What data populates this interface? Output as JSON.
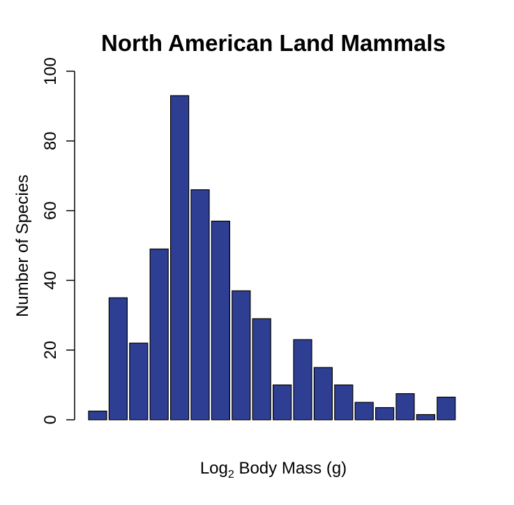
{
  "chart_data": {
    "type": "bar",
    "title": "North American Land Mammals",
    "xlabel": {
      "prefix": "Log",
      "subscript": "2",
      "suffix": " Body Mass (g)"
    },
    "ylabel": "Number of Species",
    "ylim": [
      0,
      100
    ],
    "yticks": [
      0,
      20,
      40,
      60,
      80,
      100
    ],
    "ytick_labels": [
      "0",
      "20",
      "40",
      "60",
      "80",
      "100"
    ],
    "values": [
      2.5,
      35,
      22,
      49,
      93,
      66,
      57,
      37,
      29,
      10,
      23,
      15,
      10,
      5,
      3.5,
      7.5,
      1.5,
      6.5
    ],
    "bar_color": "#2e3f93",
    "grid": false,
    "legend": "none"
  }
}
